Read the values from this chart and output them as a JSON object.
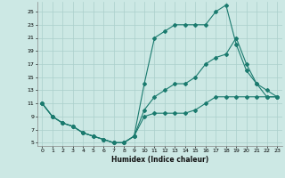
{
  "xlabel": "Humidex (Indice chaleur)",
  "bg_color": "#cce8e4",
  "grid_color": "#aacfcb",
  "line_color": "#1a7a6e",
  "xlim": [
    -0.5,
    23.5
  ],
  "ylim": [
    4.5,
    26.5
  ],
  "xticks": [
    0,
    1,
    2,
    3,
    4,
    5,
    6,
    7,
    8,
    9,
    10,
    11,
    12,
    13,
    14,
    15,
    16,
    17,
    18,
    19,
    20,
    21,
    22,
    23
  ],
  "yticks": [
    5,
    7,
    9,
    11,
    13,
    15,
    17,
    19,
    21,
    23,
    25
  ],
  "line1_x": [
    0,
    1,
    2,
    3,
    4,
    5,
    6,
    7,
    8,
    9,
    10,
    11,
    12,
    13,
    14,
    15,
    16,
    17,
    18,
    19,
    20,
    21,
    22,
    23
  ],
  "line1_y": [
    11,
    9,
    8,
    7.5,
    6.5,
    6,
    5.5,
    5,
    5,
    6,
    9,
    9.5,
    9.5,
    9.5,
    9.5,
    10,
    11,
    12,
    12,
    12,
    12,
    12,
    12,
    12
  ],
  "line2_x": [
    0,
    1,
    2,
    3,
    4,
    5,
    6,
    7,
    8,
    9,
    10,
    11,
    12,
    13,
    14,
    15,
    16,
    17,
    18,
    19,
    20,
    21,
    22,
    23
  ],
  "line2_y": [
    11,
    9,
    8,
    7.5,
    6.5,
    6,
    5.5,
    5,
    5,
    6,
    10,
    12,
    13,
    14,
    14,
    15,
    17,
    18,
    18.5,
    21,
    17,
    14,
    13,
    12
  ],
  "line3_x": [
    0,
    1,
    2,
    3,
    4,
    5,
    6,
    7,
    8,
    9,
    10,
    11,
    12,
    13,
    14,
    15,
    16,
    17,
    18,
    19,
    20,
    21,
    22,
    23
  ],
  "line3_y": [
    11,
    9,
    8,
    7.5,
    6.5,
    6,
    5.5,
    5,
    5,
    6,
    14,
    21,
    22,
    23,
    23,
    23,
    23,
    25,
    26,
    20,
    16,
    14,
    12,
    12
  ]
}
